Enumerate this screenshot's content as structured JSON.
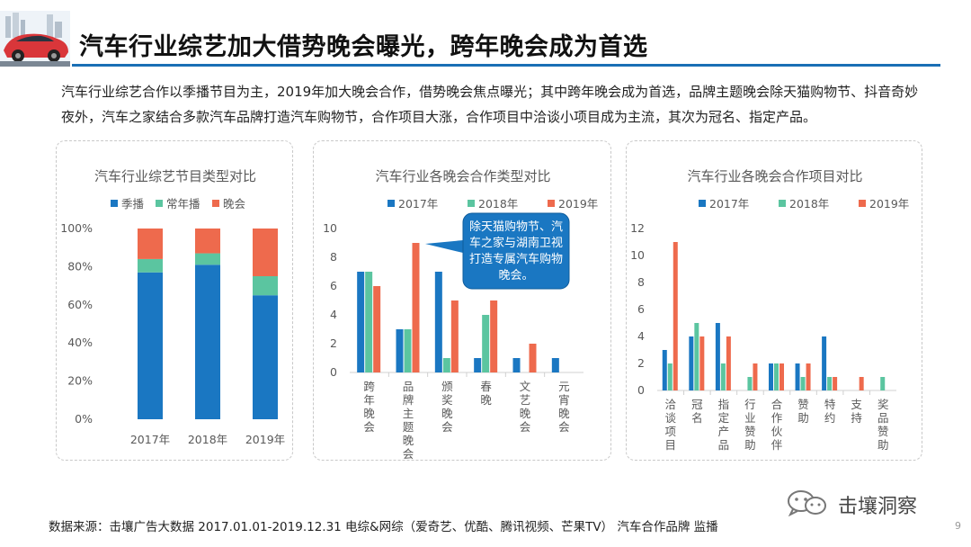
{
  "title": "汽车行业综艺加大借势晚会曝光，跨年晚会成为首选",
  "intro": "汽车行业综艺合作以季播节目为主，2019年加大晚会合作，借势晚会焦点曝光；其中跨年晚会成为首选，品牌主题晚会除天猫购物节、抖音奇妙夜外，汽车之家结合多款汽车品牌打造汽车购物节，合作项目大涨，合作项目中洽谈小项目成为主流，其次为冠名、指定产品。",
  "footer": "数据来源：击壤广告大数据 2017.01.01-2019.12.31  电综&网综（爱奇艺、优酷、腾讯视频、芒果TV） 汽车合作品牌 监播",
  "brand": "击壤洞察",
  "page_number": "9",
  "colors": {
    "blue": "#1a77c2",
    "teal": "#5bc5a0",
    "orange": "#ee6a4d",
    "accent": "#1a6fb5"
  },
  "chart_data": [
    {
      "type": "bar",
      "stacked": true,
      "percent": true,
      "title": "汽车行业综艺节目类型对比",
      "categories": [
        "2017年",
        "2018年",
        "2019年"
      ],
      "series": [
        {
          "name": "季播",
          "color": "#1a77c2",
          "values": [
            77,
            81,
            65
          ]
        },
        {
          "name": "常年播",
          "color": "#5bc5a0",
          "values": [
            7,
            6,
            10
          ]
        },
        {
          "name": "晚会",
          "color": "#ee6a4d",
          "values": [
            16,
            13,
            25
          ]
        }
      ],
      "ylim": [
        0,
        100
      ],
      "yticks": [
        "0%",
        "20%",
        "40%",
        "60%",
        "80%",
        "100%"
      ],
      "legend": "top"
    },
    {
      "type": "bar",
      "title": "汽车行业各晚会合作类型对比",
      "categories": [
        "跨年晚会",
        "品牌主题晚会",
        "颁奖晚会",
        "春晚",
        "文艺晚会",
        "元宵晚会"
      ],
      "series": [
        {
          "name": "2017年",
          "color": "#1a77c2",
          "values": [
            7,
            3,
            7,
            1,
            1,
            1
          ]
        },
        {
          "name": "2018年",
          "color": "#5bc5a0",
          "values": [
            7,
            3,
            1,
            4,
            0,
            0
          ]
        },
        {
          "name": "2019年",
          "color": "#ee6a4d",
          "values": [
            6,
            9,
            5,
            5,
            2,
            0
          ]
        }
      ],
      "ylim": [
        0,
        10
      ],
      "yticks": [
        "0",
        "2",
        "4",
        "6",
        "8",
        "10"
      ],
      "legend": "top",
      "annotation": "除天猫购物节、汽车之家与湖南卫视打造专属汽车购物晚会。"
    },
    {
      "type": "bar",
      "title": "汽车行业各晚会合作项目对比",
      "categories": [
        "洽谈项目",
        "冠名",
        "指定产品",
        "行业赞助",
        "合作伙伴",
        "赞助",
        "特约",
        "支持",
        "奖品赞助"
      ],
      "series": [
        {
          "name": "2017年",
          "color": "#1a77c2",
          "values": [
            3,
            4,
            5,
            0,
            2,
            2,
            4,
            0,
            0
          ]
        },
        {
          "name": "2018年",
          "color": "#5bc5a0",
          "values": [
            2,
            5,
            2,
            1,
            2,
            1,
            1,
            0,
            1
          ]
        },
        {
          "name": "2019年",
          "color": "#ee6a4d",
          "values": [
            11,
            4,
            4,
            2,
            2,
            2,
            1,
            1,
            0
          ]
        }
      ],
      "ylim": [
        0,
        12
      ],
      "yticks": [
        "0",
        "2",
        "4",
        "6",
        "8",
        "10",
        "12"
      ],
      "legend": "top"
    }
  ]
}
